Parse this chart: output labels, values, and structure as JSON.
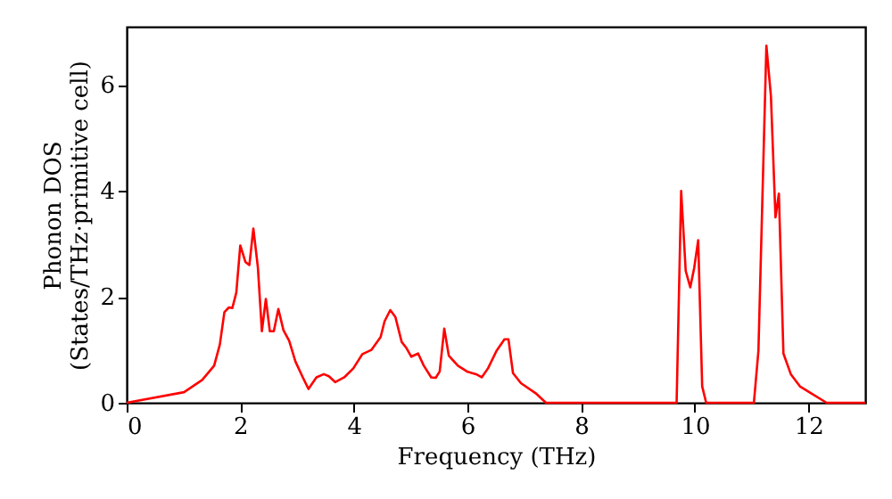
{
  "chart_data": {
    "type": "line",
    "xlabel": "Frequency (THz)",
    "ylabel": "Phonon DOS\n(States/THz·primitive cell)",
    "series": [
      {
        "color": "#ff0000",
        "x": [
          0,
          1.01,
          1.33,
          1.54,
          1.64,
          1.72,
          1.8,
          1.86,
          1.93,
          2.0,
          2.09,
          2.16,
          2.23,
          2.31,
          2.38,
          2.45,
          2.52,
          2.59,
          2.67,
          2.76,
          2.86,
          2.97,
          3.1,
          3.2,
          3.34,
          3.47,
          3.56,
          3.67,
          3.83,
          3.99,
          4.15,
          4.31,
          4.47,
          4.54,
          4.64,
          4.73,
          4.84,
          4.92,
          5.01,
          5.13,
          5.23,
          5.36,
          5.44,
          5.51,
          5.59,
          5.67,
          5.83,
          5.99,
          6.15,
          6.25,
          6.36,
          6.51,
          6.65,
          6.72,
          6.8,
          6.94,
          7.2,
          7.38,
          9.68,
          9.76,
          9.84,
          9.92,
          9.99,
          10.06,
          10.13,
          10.2,
          11.04,
          11.12,
          11.26,
          11.34,
          11.42,
          11.48,
          11.56,
          11.69,
          11.85,
          12.06,
          12.32,
          13.0
        ],
        "values": [
          0,
          0.2,
          0.43,
          0.7,
          1.1,
          1.71,
          1.8,
          1.79,
          2.08,
          2.97,
          2.66,
          2.6,
          3.29,
          2.55,
          1.35,
          1.96,
          1.35,
          1.35,
          1.77,
          1.37,
          1.17,
          0.78,
          0.48,
          0.26,
          0.48,
          0.54,
          0.5,
          0.39,
          0.48,
          0.65,
          0.92,
          1.0,
          1.24,
          1.54,
          1.75,
          1.62,
          1.15,
          1.04,
          0.87,
          0.93,
          0.7,
          0.48,
          0.47,
          0.59,
          1.4,
          0.89,
          0.7,
          0.59,
          0.54,
          0.48,
          0.65,
          0.98,
          1.2,
          1.2,
          0.56,
          0.37,
          0.18,
          0,
          0,
          4.0,
          2.49,
          2.18,
          2.55,
          3.07,
          0.31,
          0,
          0,
          0.98,
          6.74,
          5.79,
          3.5,
          3.95,
          0.93,
          0.54,
          0.31,
          0.17,
          0,
          0
        ]
      }
    ],
    "xlim": [
      0,
      13
    ],
    "ylim": [
      0,
      7.1
    ],
    "xticks": [
      0,
      2,
      4,
      6,
      8,
      10,
      12
    ],
    "yticks": [
      0,
      2,
      4,
      6
    ],
    "grid": false,
    "line_style": "solid",
    "marker": "none"
  }
}
